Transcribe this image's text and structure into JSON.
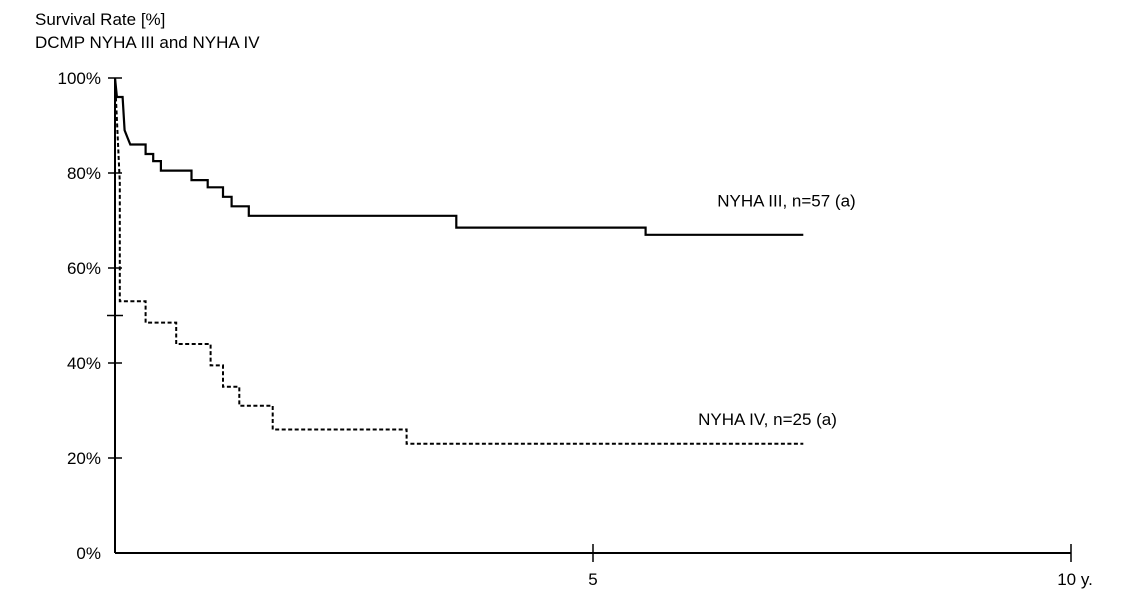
{
  "chart_data": {
    "type": "line",
    "subtype": "step",
    "title": "Survival Rate [%]",
    "subtitle": "DCMP NYHA III and NYHA IV",
    "xlabel": "",
    "ylabel": "",
    "xlim": [
      0,
      10
    ],
    "ylim": [
      0,
      100
    ],
    "x_ticks": [
      {
        "value": 0,
        "label": ""
      },
      {
        "value": 5,
        "label": "5"
      },
      {
        "value": 10,
        "label": "10 y."
      }
    ],
    "y_ticks": [
      {
        "value": 0,
        "label": "0%"
      },
      {
        "value": 20,
        "label": "20%"
      },
      {
        "value": 40,
        "label": "40%"
      },
      {
        "value": 60,
        "label": "60%"
      },
      {
        "value": 80,
        "label": "80%"
      },
      {
        "value": 100,
        "label": "100%"
      }
    ],
    "grid": false,
    "legend": "none",
    "series": [
      {
        "name": "NYHA III, n=57 (a)",
        "line_style": "solid",
        "color": "#000000",
        "points": [
          [
            0,
            100
          ],
          [
            0.02,
            96
          ],
          [
            0.08,
            96
          ],
          [
            0.1,
            89
          ],
          [
            0.13,
            87.5
          ],
          [
            0.16,
            86
          ],
          [
            0.32,
            86
          ],
          [
            0.32,
            84
          ],
          [
            0.4,
            84
          ],
          [
            0.4,
            82.5
          ],
          [
            0.48,
            82.5
          ],
          [
            0.48,
            80.5
          ],
          [
            0.8,
            80.5
          ],
          [
            0.8,
            78.5
          ],
          [
            0.97,
            78.5
          ],
          [
            0.97,
            77
          ],
          [
            1.13,
            77
          ],
          [
            1.13,
            75
          ],
          [
            1.22,
            75
          ],
          [
            1.22,
            73
          ],
          [
            1.4,
            73
          ],
          [
            1.4,
            71
          ],
          [
            3.57,
            71
          ],
          [
            3.57,
            68.5
          ],
          [
            5.55,
            68.5
          ],
          [
            5.55,
            67
          ],
          [
            7.2,
            67
          ]
        ]
      },
      {
        "name": "NYHA IV, n=25 (a)",
        "line_style": "dashed",
        "color": "#000000",
        "points": [
          [
            0,
            100
          ],
          [
            0.05,
            78
          ],
          [
            0.05,
            53
          ],
          [
            0.32,
            53
          ],
          [
            0.32,
            48.5
          ],
          [
            0.64,
            48.5
          ],
          [
            0.64,
            44
          ],
          [
            1.0,
            44
          ],
          [
            1.0,
            39.5
          ],
          [
            1.13,
            39.5
          ],
          [
            1.13,
            35
          ],
          [
            1.3,
            35
          ],
          [
            1.3,
            31
          ],
          [
            1.65,
            31
          ],
          [
            1.65,
            26
          ],
          [
            3.05,
            26
          ],
          [
            3.05,
            23
          ],
          [
            7.2,
            23
          ]
        ]
      }
    ],
    "annotations": [
      {
        "text": "NYHA III, n=57 (a)",
        "x": 6.3,
        "y": 73
      },
      {
        "text": "NYHA IV, n=25 (a)",
        "x": 6.1,
        "y": 27
      }
    ]
  }
}
